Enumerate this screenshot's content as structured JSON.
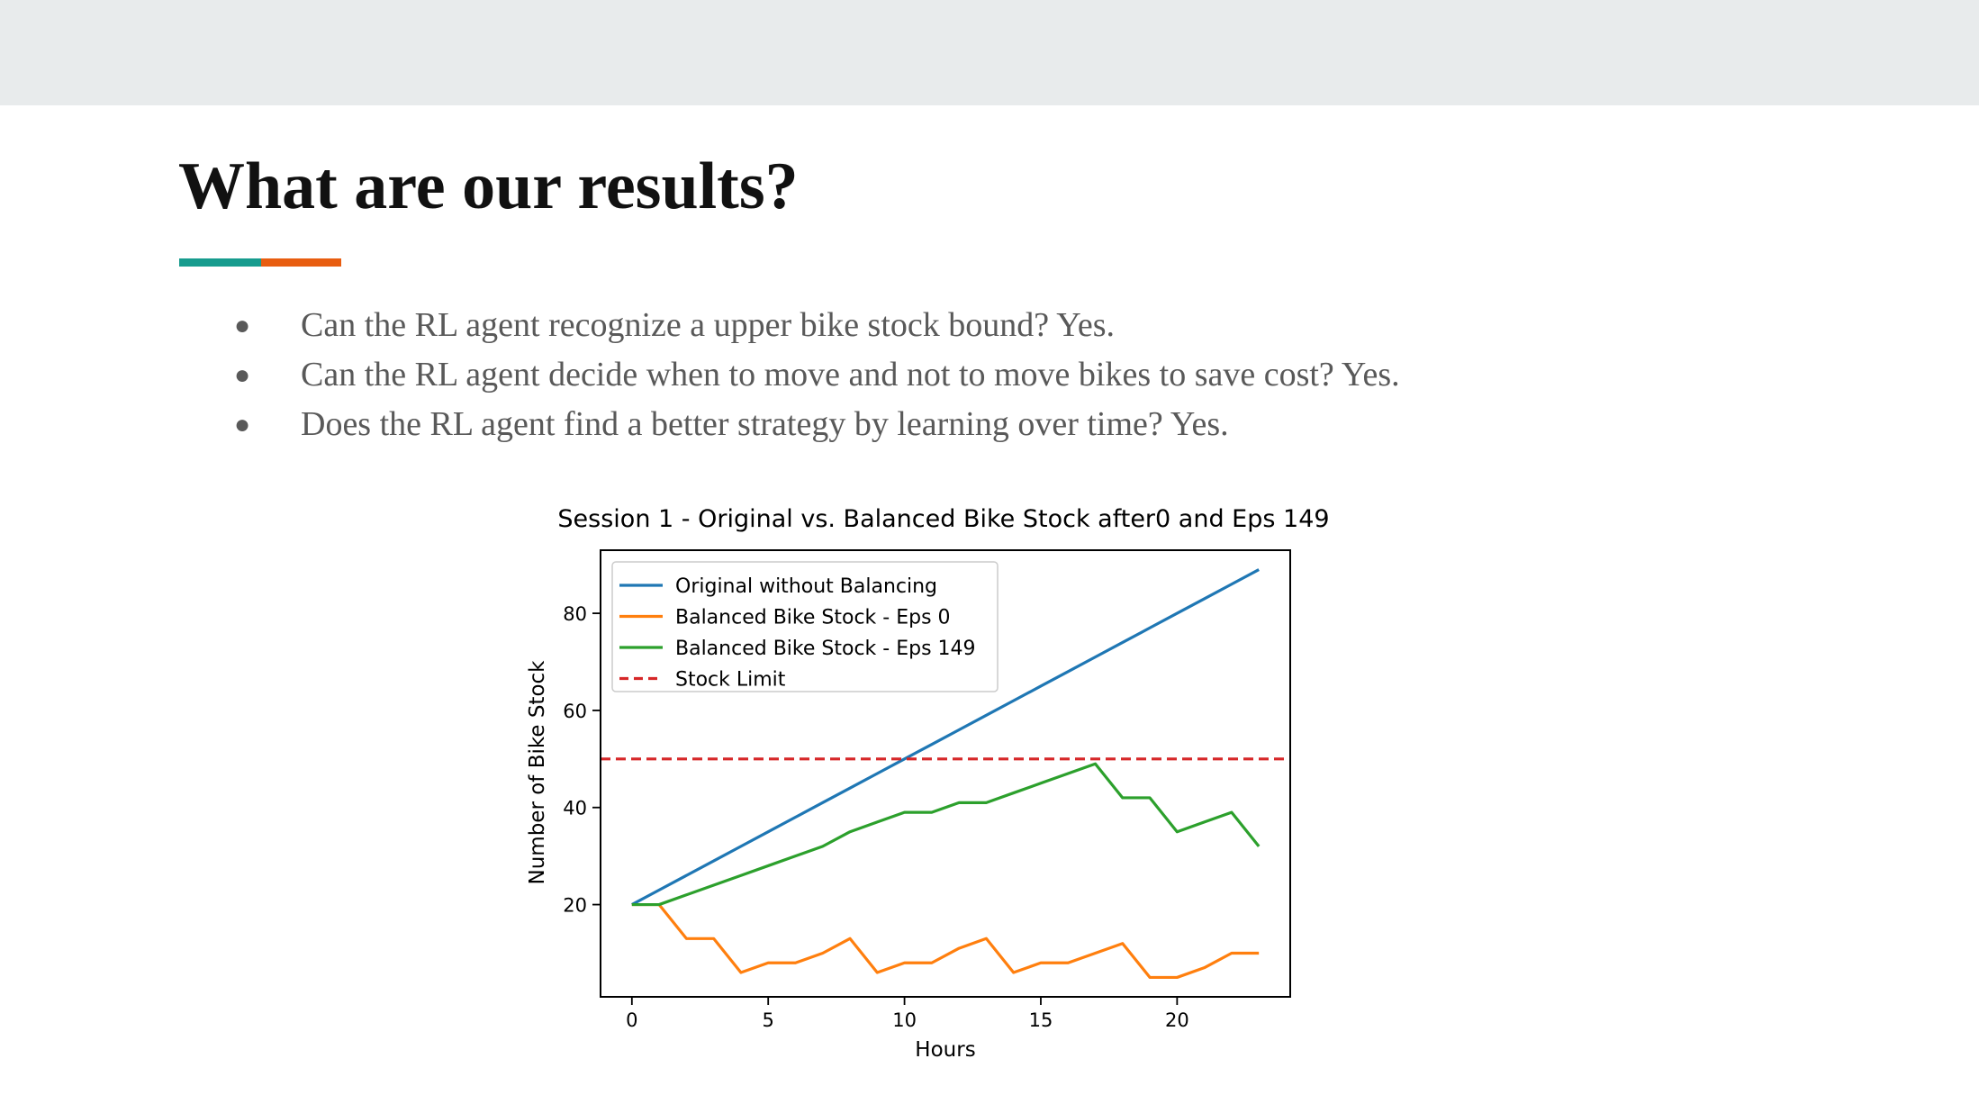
{
  "slide": {
    "title": "What are our results?",
    "accent_colors": [
      "#179c8e",
      "#e85d10"
    ],
    "bullets": [
      "Can the RL agent recognize a upper bike stock bound? Yes.",
      "Can the RL agent decide when to move and not to move bikes to save cost? Yes.",
      "Does the RL agent find a better strategy by learning over time? Yes."
    ],
    "bullet_glyph": "●"
  },
  "chart_data": {
    "type": "line",
    "title": "Session 1 - Original vs. Balanced Bike Stock after0 and Eps 149",
    "xlabel": "Hours",
    "ylabel": "Number of Bike Stock",
    "xlim": [
      -1.15,
      24.15
    ],
    "ylim": [
      1,
      93
    ],
    "xticks": [
      0,
      5,
      10,
      15,
      20
    ],
    "yticks": [
      20,
      40,
      60,
      80
    ],
    "grid": false,
    "legend_position": "upper-left",
    "x": [
      0,
      1,
      2,
      3,
      4,
      5,
      6,
      7,
      8,
      9,
      10,
      11,
      12,
      13,
      14,
      15,
      16,
      17,
      18,
      19,
      20,
      21,
      22,
      23
    ],
    "series": [
      {
        "name": "Original without Balancing",
        "color": "#1f77b4",
        "style": "solid",
        "values": [
          20,
          23,
          26,
          29,
          32,
          35,
          38,
          41,
          44,
          47,
          50,
          53,
          56,
          59,
          62,
          65,
          68,
          71,
          74,
          77,
          80,
          83,
          86,
          89
        ]
      },
      {
        "name": "Balanced Bike Stock - Eps 0",
        "color": "#ff7f0e",
        "style": "solid",
        "values": [
          20,
          20,
          13,
          13,
          6,
          8,
          8,
          10,
          13,
          6,
          8,
          8,
          11,
          13,
          6,
          8,
          8,
          10,
          12,
          5,
          5,
          7,
          10,
          10
        ]
      },
      {
        "name": "Balanced Bike Stock - Eps 149",
        "color": "#2ca02c",
        "style": "solid",
        "values": [
          20,
          20,
          22,
          24,
          26,
          28,
          30,
          32,
          35,
          37,
          39,
          39,
          41,
          41,
          43,
          45,
          47,
          49,
          42,
          42,
          35,
          37,
          39,
          32
        ]
      },
      {
        "name": "Stock Limit",
        "color": "#d62728",
        "style": "dashed",
        "constant": 50
      }
    ]
  }
}
